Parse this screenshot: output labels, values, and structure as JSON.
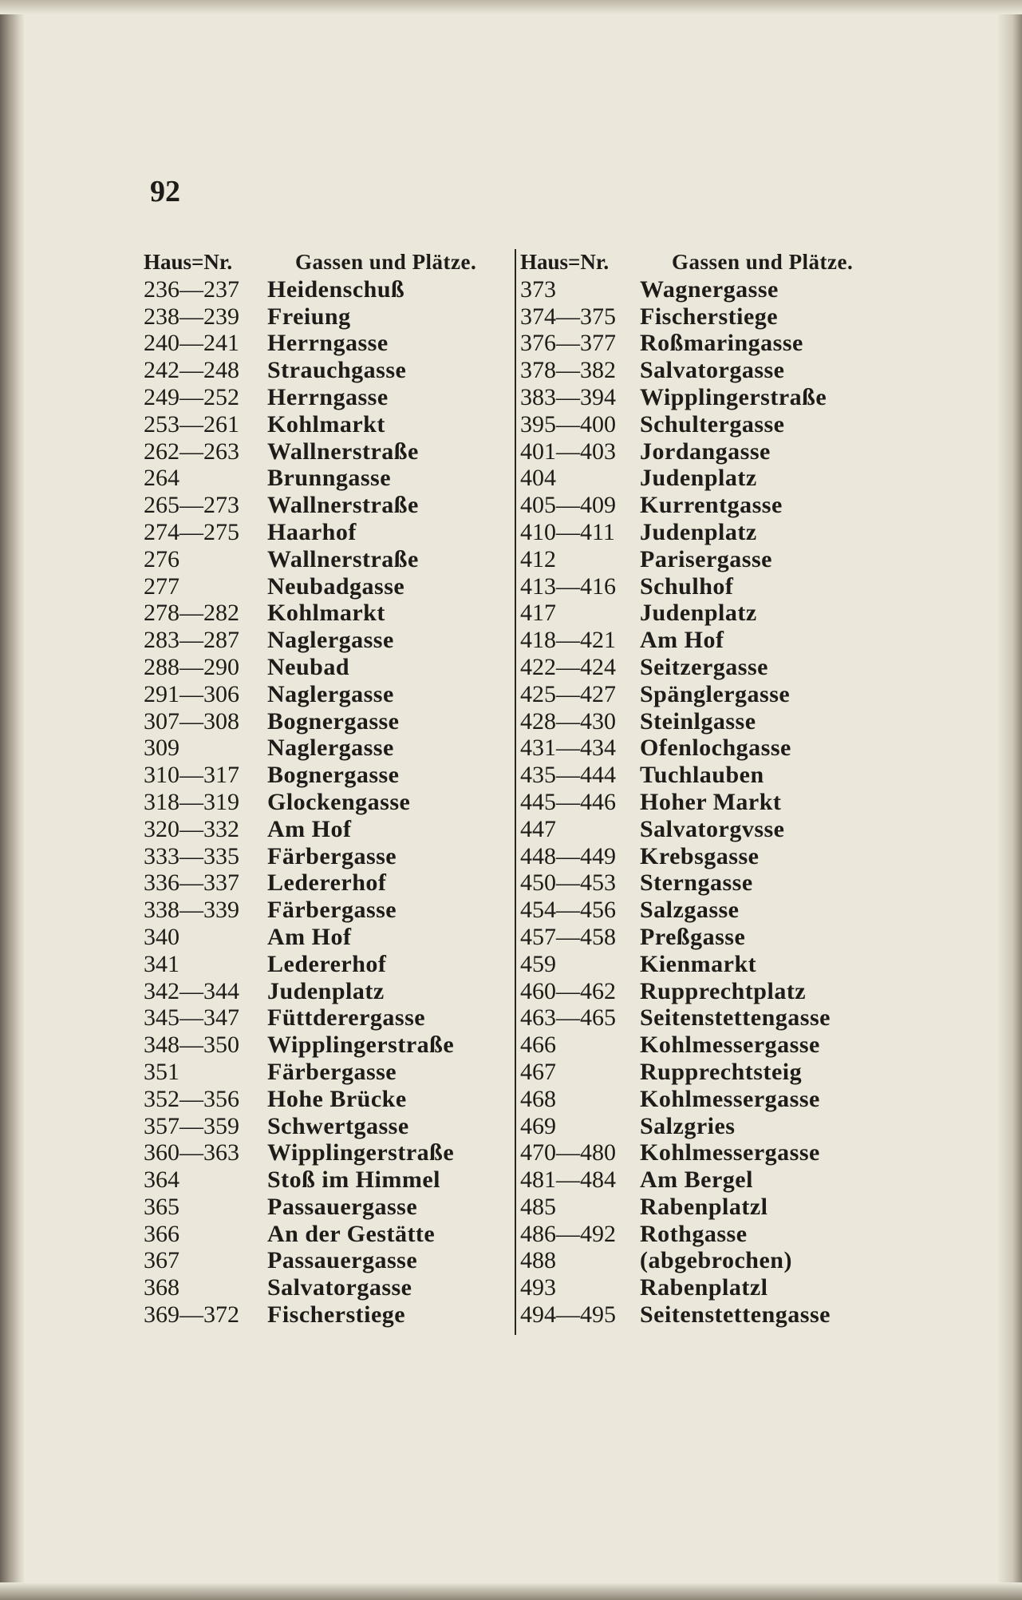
{
  "page_number": "92",
  "header": {
    "house_no": "Haus=Nr.",
    "streets": "Gassen und Plätze."
  },
  "left_column": [
    {
      "num": "236—237",
      "name": "Heidenschuß"
    },
    {
      "num": "238—239",
      "name": "Freiung"
    },
    {
      "num": "240—241",
      "name": "Herrngasse"
    },
    {
      "num": "242—248",
      "name": "Strauchgasse"
    },
    {
      "num": "249—252",
      "name": "Herrngasse"
    },
    {
      "num": "253—261",
      "name": "Kohlmarkt"
    },
    {
      "num": "262—263",
      "name": "Wallnerstraße"
    },
    {
      "num": "264",
      "name": "Brunngasse"
    },
    {
      "num": "265—273",
      "name": "Wallnerstraße"
    },
    {
      "num": "274—275",
      "name": "Haarhof"
    },
    {
      "num": "276",
      "name": "Wallnerstraße"
    },
    {
      "num": "277",
      "name": "Neubadgasse"
    },
    {
      "num": "278—282",
      "name": "Kohlmarkt"
    },
    {
      "num": "283—287",
      "name": "Naglergasse"
    },
    {
      "num": "288—290",
      "name": "Neubad"
    },
    {
      "num": "291—306",
      "name": "Naglergasse"
    },
    {
      "num": "307—308",
      "name": "Bognergasse"
    },
    {
      "num": "309",
      "name": "Naglergasse"
    },
    {
      "num": "310—317",
      "name": "Bognergasse"
    },
    {
      "num": "318—319",
      "name": "Glockengasse"
    },
    {
      "num": "320—332",
      "name": "Am Hof"
    },
    {
      "num": "333—335",
      "name": "Färbergasse"
    },
    {
      "num": "336—337",
      "name": "Ledererhof"
    },
    {
      "num": "338—339",
      "name": "Färbergasse"
    },
    {
      "num": "340",
      "name": "Am Hof"
    },
    {
      "num": "341",
      "name": "Ledererhof"
    },
    {
      "num": "342—344",
      "name": "Judenplatz"
    },
    {
      "num": "345—347",
      "name": "Füttderergasse"
    },
    {
      "num": "348—350",
      "name": "Wipplingerstraße"
    },
    {
      "num": "351",
      "name": "Färbergasse"
    },
    {
      "num": "352—356",
      "name": "Hohe Brücke"
    },
    {
      "num": "357—359",
      "name": "Schwertgasse"
    },
    {
      "num": "360—363",
      "name": "Wipplingerstraße"
    },
    {
      "num": "364",
      "name": "Stoß im Himmel"
    },
    {
      "num": "365",
      "name": "Passauergasse"
    },
    {
      "num": "366",
      "name": "An der Gestätte"
    },
    {
      "num": "367",
      "name": "Passauergasse"
    },
    {
      "num": "368",
      "name": "Salvatorgasse"
    },
    {
      "num": "369—372",
      "name": "Fischerstiege"
    }
  ],
  "right_column": [
    {
      "num": "373",
      "name": "Wagnergasse"
    },
    {
      "num": "374—375",
      "name": "Fischerstiege"
    },
    {
      "num": "376—377",
      "name": "Roßmaringasse"
    },
    {
      "num": "378—382",
      "name": "Salvatorgasse"
    },
    {
      "num": "383—394",
      "name": "Wipplingerstraße"
    },
    {
      "num": "395—400",
      "name": "Schultergasse"
    },
    {
      "num": "401—403",
      "name": "Jordangasse"
    },
    {
      "num": "404",
      "name": "Judenplatz"
    },
    {
      "num": "405—409",
      "name": "Kurrentgasse"
    },
    {
      "num": "410—411",
      "name": "Judenplatz"
    },
    {
      "num": "412",
      "name": "Parisergasse"
    },
    {
      "num": "413—416",
      "name": "Schulhof"
    },
    {
      "num": "417",
      "name": "Judenplatz"
    },
    {
      "num": "418—421",
      "name": "Am Hof"
    },
    {
      "num": "422—424",
      "name": "Seitzergasse"
    },
    {
      "num": "425—427",
      "name": "Spänglergasse"
    },
    {
      "num": "428—430",
      "name": "Steinlgasse"
    },
    {
      "num": "431—434",
      "name": "Ofenlochgasse"
    },
    {
      "num": "435—444",
      "name": "Tuchlauben"
    },
    {
      "num": "445—446",
      "name": "Hoher Markt"
    },
    {
      "num": "447",
      "name": "Salvatorgvsse"
    },
    {
      "num": "448—449",
      "name": "Krebsgasse"
    },
    {
      "num": "450—453",
      "name": "Sterngasse"
    },
    {
      "num": "454—456",
      "name": "Salzgasse"
    },
    {
      "num": "457—458",
      "name": "Preßgasse"
    },
    {
      "num": "459",
      "name": "Kienmarkt"
    },
    {
      "num": "460—462",
      "name": "Rupprechtplatz"
    },
    {
      "num": "463—465",
      "name": "Seitenstettengasse"
    },
    {
      "num": "466",
      "name": "Kohlmessergasse"
    },
    {
      "num": "467",
      "name": "Rupprechtsteig"
    },
    {
      "num": "468",
      "name": "Kohlmessergasse"
    },
    {
      "num": "469",
      "name": "Salzgries"
    },
    {
      "num": "470—480",
      "name": "Kohlmessergasse"
    },
    {
      "num": "481—484",
      "name": "Am Bergel"
    },
    {
      "num": "485",
      "name": "Rabenplatzl"
    },
    {
      "num": "486—492",
      "name": "Rothgasse"
    },
    {
      "num": "488",
      "name": "(abgebrochen)"
    },
    {
      "num": "493",
      "name": "Rabenplatzl"
    },
    {
      "num": "494—495",
      "name": "Seitenstettengasse"
    }
  ]
}
